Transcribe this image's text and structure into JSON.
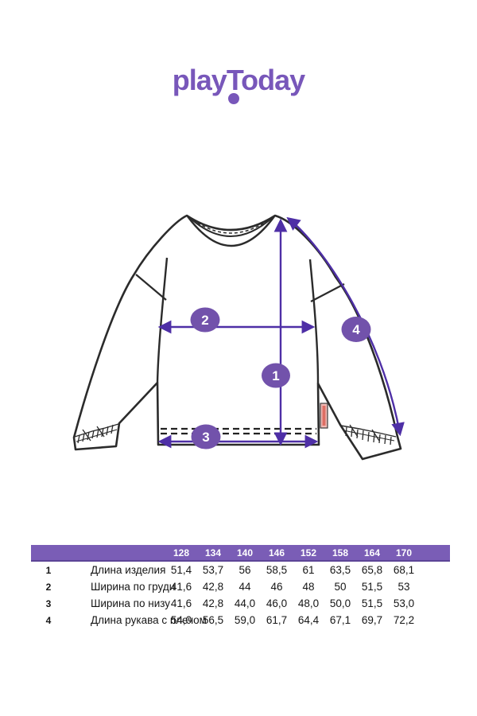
{
  "brand": {
    "logo_text": "playToday"
  },
  "colors": {
    "logo_purple": "#7857ba",
    "arrow_purple": "#4e2fa6",
    "badge_purple": "#7252ab",
    "table_header_bg": "#7a5db6",
    "sketch_line": "#2b2b2b",
    "tag_pink": "#f0b9b4",
    "tag_stripe_red": "#dd6e64"
  },
  "diagram": {
    "badge_labels": [
      "1",
      "2",
      "3",
      "4"
    ]
  },
  "table": {
    "header_sizes": [
      "128",
      "134",
      "140",
      "146",
      "152",
      "158",
      "164",
      "170"
    ],
    "rows": [
      {
        "num": "1",
        "label": "Длина изделия",
        "values": [
          "51,4",
          "53,7",
          "56",
          "58,5",
          "61",
          "63,5",
          "65,8",
          "68,1"
        ]
      },
      {
        "num": "2",
        "label": "Ширина по груди",
        "values": [
          "41,6",
          "42,8",
          "44",
          "46",
          "48",
          "50",
          "51,5",
          "53"
        ]
      },
      {
        "num": "3",
        "label": "Ширина по низу",
        "values": [
          "41,6",
          "42,8",
          "44,0",
          "46,0",
          "48,0",
          "50,0",
          "51,5",
          "53,0"
        ]
      },
      {
        "num": "4",
        "label": "Длина рукава с плечом",
        "values": [
          "54,0",
          "56,5",
          "59,0",
          "61,7",
          "64,4",
          "67,1",
          "69,7",
          "72,2"
        ]
      }
    ]
  }
}
